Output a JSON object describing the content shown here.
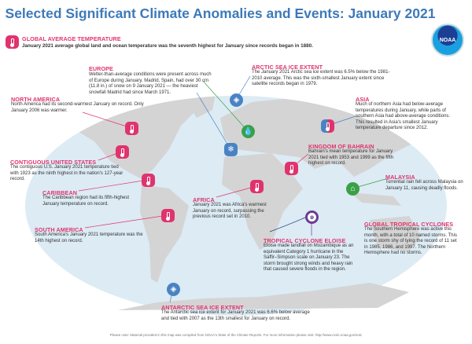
{
  "title": "Selected Significant Climate Anomalies and Events: January 2021",
  "logo": "NOAA",
  "events": {
    "global": {
      "heading": "GLOBAL AVERAGE TEMPERATURE",
      "text": "January 2021 average global land and ocean temperature was the seventh highest for January since records began in 1880.",
      "icon": "thermometer-icon"
    },
    "europe": {
      "heading": "EUROPE",
      "text": "Wetter-than-average conditions were present across much of Europe during January. Madrid, Spain, had over 30 cm (11.8 in.) of snow on 9 January 2021 — the heaviest snowfall Madrid had since March 1971.",
      "icon": "precipitation-icon"
    },
    "arctic": {
      "heading": "ARCTIC SEA ICE EXTENT",
      "text": "The January 2021 Arctic sea ice extent was 6.5% below the 1981-2010 average. This was the sixth-smallest January extent since satellite records began in 1979.",
      "icon": "sea-ice-icon"
    },
    "north_america": {
      "heading": "NORTH AMERICA",
      "text": "North America had its second-warmest January on record. Only January 2006 was warmer.",
      "icon": "thermometer-icon"
    },
    "asia": {
      "heading": "ASIA",
      "text": "Much of northern Asia had below-average temperatures during January, while parts of southern Asia had above-average conditions. This resulted in Asia's smallest January temperature departure since 2012.",
      "icon": "thermometer-icon"
    },
    "us": {
      "heading": "CONTIGUOUS UNITED STATES",
      "text": "The contiguous U.S. January 2021 temperature tied with 1923 as the ninth highest in the nation's 127-year record.",
      "icon": "thermometer-icon"
    },
    "bahrain": {
      "heading": "KINGDOM OF BAHRAIN",
      "text": "Bahrain's mean temperature for January 2021 tied with 1953 and 1999 as the fifth highest on record.",
      "icon": "thermometer-icon"
    },
    "caribbean": {
      "heading": "CARIBBEAN",
      "text": "The Caribbean region had its fifth-highest January temperature on record.",
      "icon": "thermometer-icon"
    },
    "malaysia": {
      "heading": "MALAYSIA",
      "text": "Torrential rain fell across Malaysia on January 11, causing deadly floods.",
      "icon": "flood-icon"
    },
    "africa": {
      "heading": "AFRICA",
      "text": "January 2021 was Africa's warmest January on record, surpassing the previous record set in 2010.",
      "icon": "thermometer-icon"
    },
    "south_america": {
      "heading": "SOUTH AMERICA",
      "text": "South America's January 2021 temperature was the 14th highest on record.",
      "icon": "thermometer-icon"
    },
    "cyclones": {
      "heading": "GLOBAL TROPICAL CYCLONES",
      "text": "The Southern Hemisphere was active this month, with a total of 10 named storms. This is one storm shy of tying the record of 11 set in 1985, 1986, and 1997. The Northern Hemisphere had no storms."
    },
    "eloise": {
      "heading": "TROPICAL CYCLONE ELOISE",
      "text": "Eloise made landfall on Mozambique as an equivalent Category 1 hurricane in the Saffir–Simpson scale on January 23. The storm brought strong winds and heavy rain that caused severe floods in the region.",
      "icon": "cyclone-icon"
    },
    "antarctic": {
      "heading": "ANTARCTIC SEA ICE EXTENT",
      "text": "The Antarctic sea ice extent for January 2021 was 6.6% below average and tied with 2007 as the 13th smallest for January on record.",
      "icon": "sea-ice-icon"
    }
  },
  "snow_icon": "snowflake-icon",
  "footer": "Please note: Material provided in this map was compiled from NOAA's State of the Climate Reports. For more information please visit: http://www.ncdc.noaa.gov/sotc",
  "colors": {
    "title": "#3d7ab8",
    "heading": "#e0336e",
    "ocean": "#dcebf4",
    "land": "#d4d4d4",
    "warm": "#e0336e",
    "ice": "#4a83c4",
    "precip": "#3aa047",
    "cyclone": "#6a3d92"
  }
}
